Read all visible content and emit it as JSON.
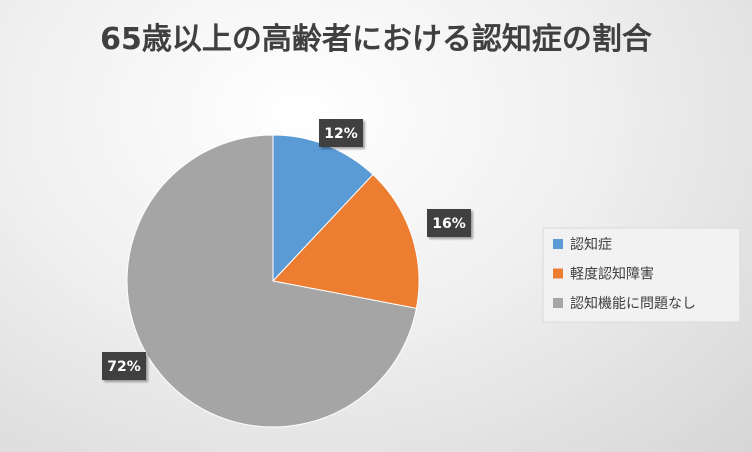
{
  "chart_data": {
    "type": "pie",
    "title": "65歳以上の高齢者における認知症の割合",
    "categories": [
      "認知症",
      "軽度認知障害",
      "認知機能に問題なし"
    ],
    "values": [
      12,
      16,
      72
    ],
    "value_labels": [
      "12%",
      "16%",
      "72%"
    ],
    "colors": [
      "#5b9bd5",
      "#ed7d31",
      "#a5a5a5"
    ],
    "legend": "right"
  }
}
